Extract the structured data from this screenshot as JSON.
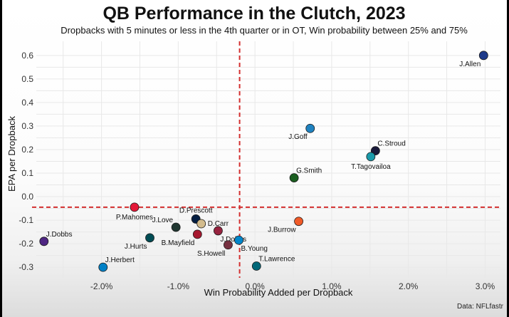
{
  "chart_data": {
    "type": "scatter",
    "title": "QB Performance in the Clutch, 2023",
    "subtitle": "Dropbacks with 5 minutes or less in the 4th quarter or in OT, Win probability between 25% and 75%",
    "xlabel": "Win Probability Added per Dropback",
    "ylabel": "EPA per Dropback",
    "caption": "Data: NFLfastr",
    "x_ticks": [
      {
        "value": -2.0,
        "label": "-2.0%"
      },
      {
        "value": -1.0,
        "label": "-1.0%"
      },
      {
        "value": 0.0,
        "label": "0.0%"
      },
      {
        "value": 1.0,
        "label": "1.0%"
      },
      {
        "value": 2.0,
        "label": "2.0%"
      },
      {
        "value": 3.0,
        "label": "3.0%"
      }
    ],
    "y_ticks": [
      {
        "value": -0.3,
        "label": "-0.3"
      },
      {
        "value": -0.2,
        "label": "-0.2"
      },
      {
        "value": -0.1,
        "label": "-0.1"
      },
      {
        "value": 0.0,
        "label": "0.0"
      },
      {
        "value": 0.1,
        "label": "0.1"
      },
      {
        "value": 0.2,
        "label": "0.2"
      },
      {
        "value": 0.3,
        "label": "0.3"
      },
      {
        "value": 0.4,
        "label": "0.4"
      },
      {
        "value": 0.5,
        "label": "0.5"
      },
      {
        "value": 0.6,
        "label": "0.6"
      }
    ],
    "xlim": [
      -2.85,
      3.2
    ],
    "ylim": [
      -0.345,
      0.66
    ],
    "reference_lines": {
      "x": -0.2,
      "y": -0.045,
      "color": "#d32f2f"
    },
    "grid": true,
    "points": [
      {
        "name": "J.Allen",
        "x": 2.98,
        "y": 0.6,
        "color": "#1e3a8a",
        "label_pos": "below-left"
      },
      {
        "name": "C.Stroud",
        "x": 1.57,
        "y": 0.195,
        "color": "#1a1a3a",
        "label_pos": "above-right"
      },
      {
        "name": "T.Tagovailoa",
        "x": 1.51,
        "y": 0.17,
        "color": "#1b9aaa",
        "label_pos": "below"
      },
      {
        "name": "J.Goff",
        "x": 0.72,
        "y": 0.29,
        "color": "#1f82c0",
        "label_pos": "below-left"
      },
      {
        "name": "G.Smith",
        "x": 0.51,
        "y": 0.08,
        "color": "#1a5e20",
        "label_pos": "above-right"
      },
      {
        "name": "J.Burrow",
        "x": 0.57,
        "y": -0.105,
        "color": "#f05a28",
        "label_pos": "below-left"
      },
      {
        "name": "P.Mahomes",
        "x": -1.57,
        "y": -0.045,
        "color": "#e31837",
        "label_pos": "below"
      },
      {
        "name": "D.Prescott",
        "x": -0.77,
        "y": -0.095,
        "color": "#041e42",
        "label_pos": "above"
      },
      {
        "name": "D.Carr",
        "x": -0.7,
        "y": -0.115,
        "color": "#d3bc8d",
        "label_pos": "right"
      },
      {
        "name": "J.Love",
        "x": -1.03,
        "y": -0.13,
        "color": "#203731",
        "label_pos": "above-left"
      },
      {
        "name": "J.Dobbs",
        "x": -0.48,
        "y": -0.145,
        "color": "#97233f",
        "label_pos": "below-right"
      },
      {
        "name": "B.Mayfield",
        "x": -0.75,
        "y": -0.16,
        "color": "#a71930",
        "label_pos": "below-left"
      },
      {
        "name": "J.Hurts",
        "x": -1.37,
        "y": -0.175,
        "color": "#004c54",
        "label_pos": "below-left"
      },
      {
        "name": "J.Dobbs",
        "x": -2.75,
        "y": -0.19,
        "color": "#4f2683",
        "label_pos": "above-right"
      },
      {
        "name": "B.Young",
        "x": -0.21,
        "y": -0.185,
        "color": "#0085ca",
        "label_pos": "below-right"
      },
      {
        "name": "S.Howell",
        "x": -0.35,
        "y": -0.205,
        "color": "#773141",
        "label_pos": "below-left"
      },
      {
        "name": "T.Lawrence",
        "x": 0.02,
        "y": -0.295,
        "color": "#006778",
        "label_pos": "above-right"
      },
      {
        "name": "J.Herbert",
        "x": -1.98,
        "y": -0.3,
        "color": "#0080c6",
        "label_pos": "above-right"
      }
    ]
  }
}
